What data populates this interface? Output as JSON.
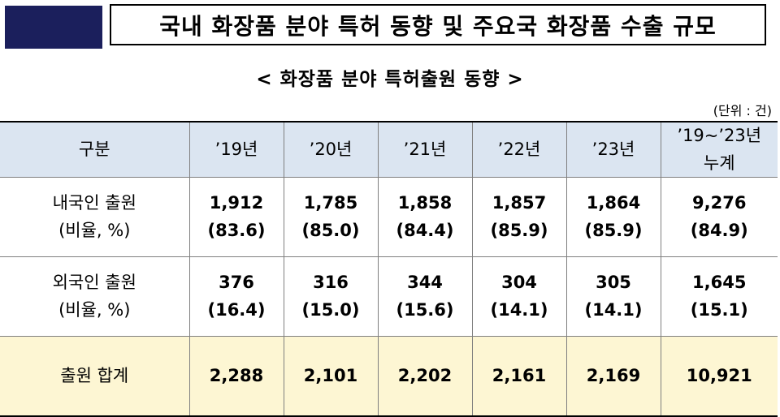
{
  "title": "국내 화장품 분야 특허 동향 및 주요국 화장품 수출 규모",
  "subtitle": "< 화장품 분야 특허출원 동향 >",
  "unit": "(단위 : 건)",
  "colors": {
    "header_block": "#1b1f5c",
    "header_row_bg": "#dbe5f1",
    "total_row_bg": "#fdf6d3"
  },
  "table": {
    "headers": {
      "category": "구분",
      "y19": "’19년",
      "y20": "’20년",
      "y21": "’21년",
      "y22": "’22년",
      "y23": "’23년",
      "cumulative_line1": "’19~’23년",
      "cumulative_line2": "누계"
    },
    "rows": {
      "domestic": {
        "label_line1": "내국인 출원",
        "label_line2": "(비율, %)",
        "counts": [
          "1,912",
          "1,785",
          "1,858",
          "1,857",
          "1,864",
          "9,276"
        ],
        "ratios": [
          "(83.6)",
          "(85.0)",
          "(84.4)",
          "(85.9)",
          "(85.9)",
          "(84.9)"
        ]
      },
      "foreign": {
        "label_line1": "외국인 출원",
        "label_line2": "(비율, %)",
        "counts": [
          "376",
          "316",
          "344",
          "304",
          "305",
          "1,645"
        ],
        "ratios": [
          "(16.4)",
          "(15.0)",
          "(15.6)",
          "(14.1)",
          "(14.1)",
          "(15.1)"
        ]
      },
      "total": {
        "label": "출원 합계",
        "values": [
          "2,288",
          "2,101",
          "2,202",
          "2,161",
          "2,169",
          "10,921"
        ]
      }
    }
  }
}
